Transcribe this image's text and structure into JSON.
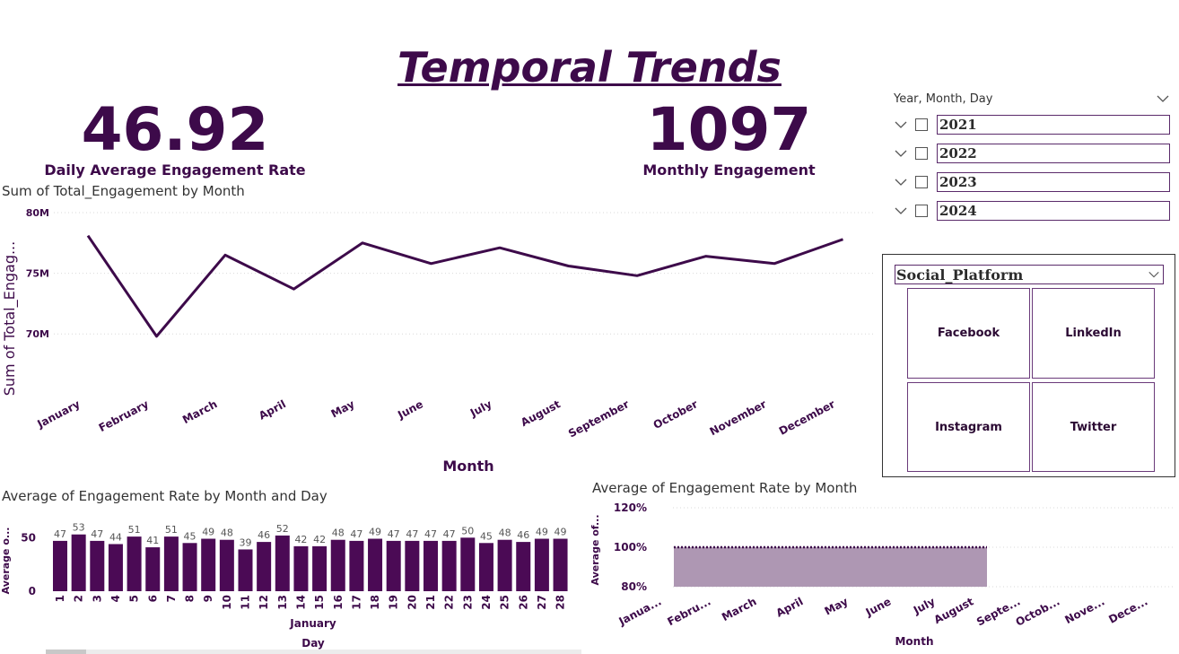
{
  "page": {
    "title": " Temporal Trends"
  },
  "kpis": {
    "daily_avg": {
      "value": "46.92",
      "label": "Daily Average Engagement Rate"
    },
    "monthly": {
      "value": "1097",
      "label": "Monthly Engagement"
    }
  },
  "date_slicer": {
    "header": "Year, Month, Day",
    "years": [
      "2021",
      "2022",
      "2023",
      "2024"
    ]
  },
  "platform_slicer": {
    "header": "Social_Platform",
    "options": [
      "Facebook",
      "LinkedIn",
      "Instagram",
      "Twitter"
    ]
  },
  "colors": {
    "primary": "#3d0a4a",
    "bar": "#4b0a55",
    "area": "#ae97b3"
  },
  "chart_data": [
    {
      "type": "line",
      "title": "Sum of Total_Engagement by Month",
      "xlabel": "Month",
      "ylabel": "Sum of Total_Engag...",
      "categories": [
        "January",
        "February",
        "March",
        "April",
        "May",
        "June",
        "July",
        "August",
        "September",
        "October",
        "November",
        "December"
      ],
      "values": [
        78.1,
        69.8,
        76.5,
        73.7,
        77.5,
        75.8,
        77.1,
        75.6,
        74.8,
        76.4,
        75.8,
        77.8
      ],
      "y_unit": "M",
      "yticks": [
        "70M",
        "75M",
        "80M"
      ],
      "ylim": [
        67.5,
        80
      ],
      "grid": true
    },
    {
      "type": "bar",
      "title": "Average of Engagement Rate by Month and Day",
      "xlabel": "Day",
      "x_group_label": "January",
      "ylabel": "Average o...",
      "categories": [
        "1",
        "2",
        "3",
        "4",
        "5",
        "6",
        "7",
        "8",
        "9",
        "10",
        "11",
        "12",
        "13",
        "14",
        "15",
        "16",
        "17",
        "18",
        "19",
        "20",
        "21",
        "22",
        "23",
        "24",
        "25",
        "26",
        "27",
        "28"
      ],
      "values": [
        47,
        53,
        47,
        44,
        51,
        41,
        51,
        45,
        49,
        48,
        39,
        46,
        52,
        42,
        42,
        48,
        47,
        49,
        47,
        47,
        47,
        47,
        50,
        45,
        48,
        46,
        49,
        49
      ],
      "yticks": [
        "0",
        "50"
      ],
      "ylim": [
        0,
        62
      ]
    },
    {
      "type": "area",
      "title": "Average of Engagement Rate by Month",
      "xlabel": "Month",
      "ylabel": "Average of...",
      "categories": [
        "Janua...",
        "Febru...",
        "March",
        "April",
        "May",
        "June",
        "July",
        "August",
        "Septe...",
        "Octob...",
        "Nove...",
        "Dece..."
      ],
      "values": [
        100,
        100,
        100,
        100,
        100,
        100,
        100,
        100,
        100,
        100,
        100,
        100
      ],
      "yticks": [
        "80%",
        "100%",
        "120%"
      ],
      "ylim": [
        80,
        120
      ]
    }
  ]
}
